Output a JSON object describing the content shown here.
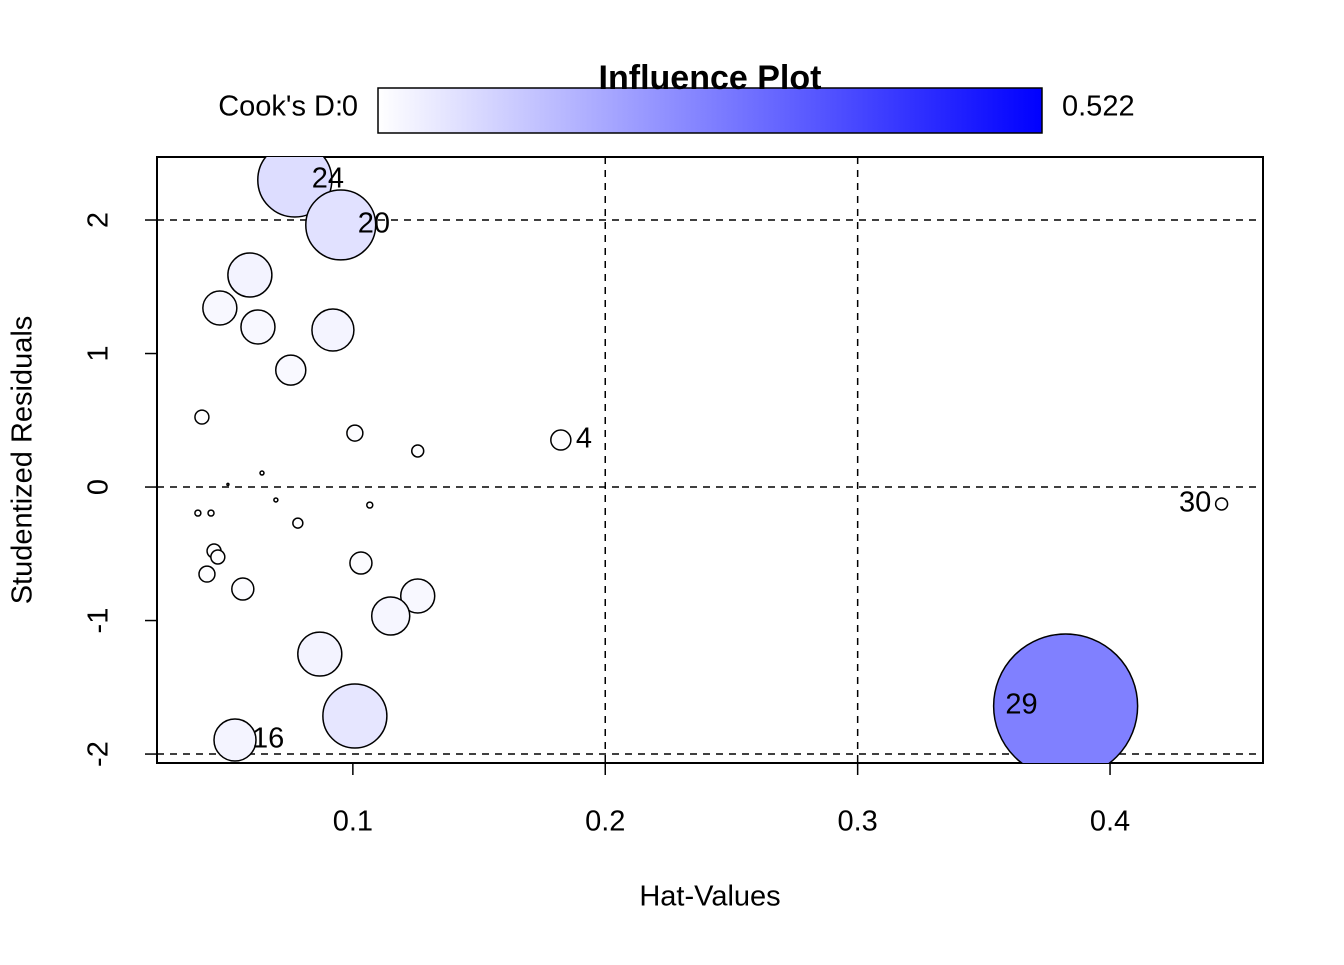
{
  "chart_data": {
    "type": "bubble",
    "title": "Influence Plot",
    "x_label": "Hat-Values",
    "y_label": "Studentized Residuals",
    "colorbar": {
      "label": "Cook's D:",
      "range": [
        0,
        0.522
      ],
      "colors": [
        "#ffffff",
        "#0000ff"
      ]
    },
    "xlim": [
      0.0224,
      0.4606
    ],
    "ylim": [
      -2.067,
      2.472
    ],
    "xticks": [
      0.1,
      0.2,
      0.3,
      0.4
    ],
    "yticks": [
      -2,
      -1,
      0,
      1,
      2
    ],
    "hlines": [
      -2,
      0,
      2
    ],
    "vlines": [
      0.2,
      0.3
    ],
    "x": [
      0.077,
      0.0952,
      0.0592,
      0.0473,
      0.0624,
      0.0921,
      0.0754,
      0.0402,
      0.1008,
      0.1257,
      0.1824,
      0.064,
      0.0505,
      0.0695,
      0.0386,
      0.0438,
      0.1067,
      0.0782,
      0.045,
      0.0465,
      0.0422,
      0.1032,
      0.0564,
      0.1257,
      0.115,
      0.0869,
      0.1008,
      0.0533,
      0.3824,
      0.4442
    ],
    "y": [
      2.3,
      1.963,
      1.588,
      1.341,
      1.199,
      1.176,
      0.876,
      0.524,
      0.404,
      0.27,
      0.352,
      0.105,
      0.02,
      -0.097,
      -0.195,
      -0.195,
      -0.135,
      -0.27,
      -0.479,
      -0.524,
      -0.652,
      -0.569,
      -0.764,
      -0.816,
      -0.966,
      -1.251,
      -1.715,
      -1.895,
      -1.64,
      -0.127
    ],
    "size": [
      0.138,
      0.123,
      0.0487,
      0.0291,
      0.0291,
      0.0444,
      0.0227,
      0.0049,
      0.0064,
      0.0036,
      0.0101,
      0.0004,
      0.0001,
      0.0004,
      0.0009,
      0.0009,
      0.0009,
      0.0025,
      0.0049,
      0.0049,
      0.0064,
      0.0122,
      0.0122,
      0.0291,
      0.0364,
      0.0487,
      0.1031,
      0.0444,
      0.522,
      0.0036
    ],
    "labels": [
      "24",
      "20",
      null,
      null,
      null,
      null,
      null,
      null,
      null,
      null,
      "4",
      null,
      null,
      null,
      null,
      null,
      null,
      null,
      null,
      null,
      null,
      null,
      null,
      null,
      null,
      null,
      null,
      "16",
      "29",
      "30"
    ]
  }
}
